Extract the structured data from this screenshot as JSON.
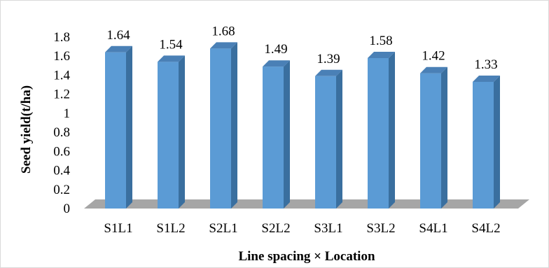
{
  "chart_data": {
    "type": "bar",
    "categories": [
      "S1L1",
      "S1L2",
      "S2L1",
      "S2L2",
      "S3L1",
      "S3L2",
      "S4L1",
      "S4L2"
    ],
    "values": [
      1.64,
      1.54,
      1.68,
      1.49,
      1.39,
      1.58,
      1.42,
      1.33
    ],
    "value_labels": [
      "1.64",
      "1.54",
      "1.68",
      "1.49",
      "1.39",
      "1.58",
      "1.42",
      "1.33"
    ],
    "y_ticks": [
      "0",
      "0.2",
      "0.4",
      "0.6",
      "0.8",
      "1",
      "1.2",
      "1.4",
      "1.6",
      "1.8"
    ],
    "title": "",
    "xlabel": "Line spacing × Location",
    "ylabel": "Seed yield(t/ha)",
    "ylim": [
      0,
      1.8
    ],
    "grid": false,
    "legend": "none",
    "style": "3d-column",
    "colors": {
      "bar_front": "#5b9bd5",
      "bar_side": "#3a6f9f",
      "bar_top": "#4a80b6",
      "floor": "#a6a6a6"
    }
  }
}
